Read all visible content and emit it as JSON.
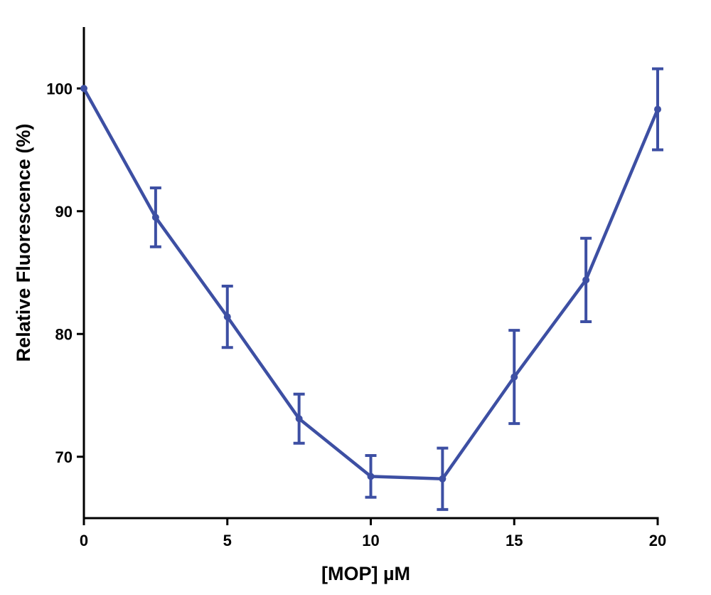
{
  "chart_data": {
    "type": "line",
    "title": "",
    "xlabel": "[MOP] µM",
    "ylabel": "Relative Fluorescence (%)",
    "xlim": [
      0,
      20
    ],
    "ylim": [
      65,
      105
    ],
    "xticks": [
      0,
      5,
      10,
      15,
      20
    ],
    "yticks": [
      70,
      80,
      90,
      100
    ],
    "xtick_labels": [
      "0",
      "5",
      "10",
      "15",
      "20"
    ],
    "ytick_labels": [
      "70",
      "80",
      "90",
      "100"
    ],
    "grid": false,
    "legend": "none",
    "series": [
      {
        "color": "#3d4fa3",
        "x": [
          0,
          2.5,
          5,
          7.5,
          10,
          12.5,
          15,
          17.5,
          20
        ],
        "y": [
          100,
          89.5,
          81.4,
          73.1,
          68.4,
          68.2,
          76.5,
          84.4,
          98.3
        ],
        "error": [
          0,
          2.4,
          2.5,
          2.0,
          1.7,
          2.5,
          3.8,
          3.4,
          3.3
        ]
      }
    ]
  }
}
